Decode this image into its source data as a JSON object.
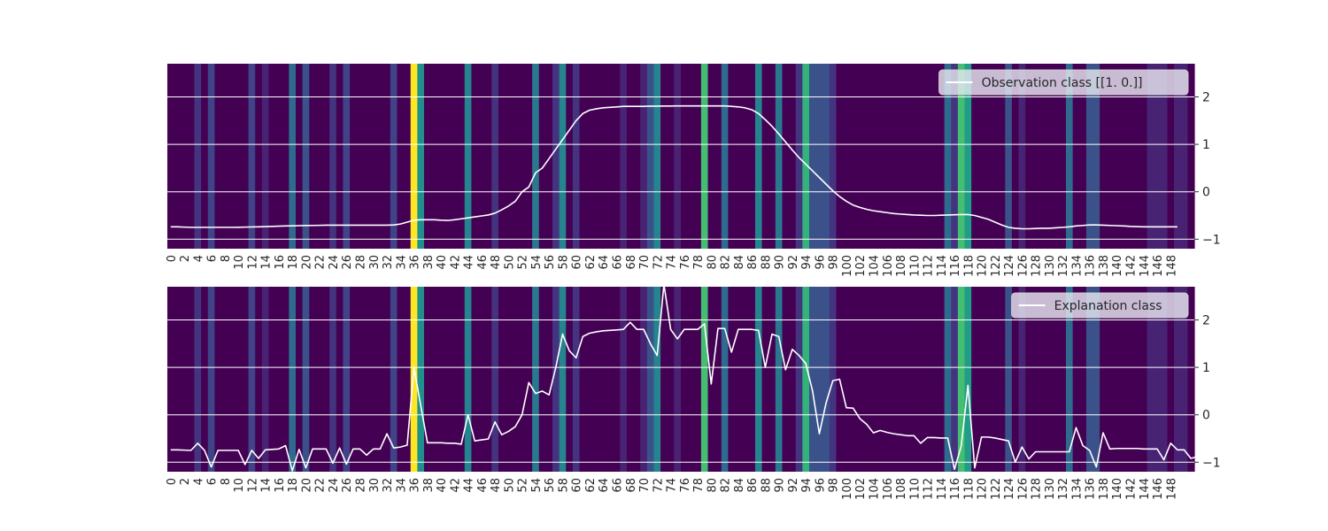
{
  "chart_data": [
    {
      "type": "line",
      "title": "",
      "xlabel": "",
      "ylabel": "",
      "ylim": [
        -1.2,
        2.7
      ],
      "xlim": [
        0,
        150
      ],
      "grid": true,
      "legend": {
        "placement": "top-right",
        "entries": [
          "Observation class [[1. 0.]]"
        ]
      },
      "x_tick_labels": [
        "0",
        "2",
        "4",
        "6",
        "8",
        "10",
        "12",
        "14",
        "16",
        "18",
        "20",
        "22",
        "24",
        "26",
        "28",
        "30",
        "32",
        "34",
        "36",
        "38",
        "40",
        "42",
        "44",
        "46",
        "48",
        "50",
        "52",
        "54",
        "56",
        "58",
        "60",
        "62",
        "64",
        "66",
        "68",
        "70",
        "72",
        "74",
        "76",
        "78",
        "80",
        "82",
        "84",
        "86",
        "88",
        "90",
        "92",
        "94",
        "96",
        "98",
        "100",
        "102",
        "104",
        "106",
        "108",
        "110",
        "112",
        "114",
        "116",
        "118",
        "120",
        "122",
        "124",
        "126",
        "128",
        "130",
        "132",
        "134",
        "136",
        "138",
        "140",
        "142",
        "144",
        "146",
        "148"
      ],
      "y_tick_labels": [
        "2",
        "1",
        "0",
        "−1"
      ],
      "y_ticks": [
        2,
        1,
        0,
        -1
      ],
      "series": [
        {
          "name": "Observation class [[1. 0.]]",
          "color": "#ffffff",
          "values": [
            -0.74,
            -0.74,
            -0.745,
            -0.75,
            -0.75,
            -0.75,
            -0.75,
            -0.75,
            -0.75,
            -0.75,
            -0.748,
            -0.745,
            -0.742,
            -0.74,
            -0.735,
            -0.73,
            -0.725,
            -0.72,
            -0.718,
            -0.715,
            -0.712,
            -0.71,
            -0.708,
            -0.705,
            -0.705,
            -0.705,
            -0.705,
            -0.705,
            -0.705,
            -0.705,
            -0.705,
            -0.705,
            -0.705,
            -0.7,
            -0.68,
            -0.64,
            -0.6,
            -0.59,
            -0.59,
            -0.59,
            -0.6,
            -0.605,
            -0.59,
            -0.57,
            -0.55,
            -0.53,
            -0.51,
            -0.49,
            -0.45,
            -0.38,
            -0.3,
            -0.2,
            0.0,
            0.1,
            0.4,
            0.5,
            0.7,
            0.9,
            1.1,
            1.3,
            1.5,
            1.65,
            1.72,
            1.75,
            1.77,
            1.78,
            1.79,
            1.8,
            1.8,
            1.8,
            1.8,
            1.805,
            1.805,
            1.808,
            1.808,
            1.81,
            1.81,
            1.81,
            1.81,
            1.81,
            1.81,
            1.81,
            1.81,
            1.8,
            1.79,
            1.77,
            1.73,
            1.65,
            1.52,
            1.38,
            1.22,
            1.05,
            0.88,
            0.72,
            0.58,
            0.44,
            0.3,
            0.16,
            0.02,
            -0.1,
            -0.2,
            -0.28,
            -0.33,
            -0.37,
            -0.4,
            -0.42,
            -0.44,
            -0.46,
            -0.47,
            -0.48,
            -0.49,
            -0.495,
            -0.5,
            -0.5,
            -0.495,
            -0.49,
            -0.485,
            -0.48,
            -0.48,
            -0.5,
            -0.54,
            -0.58,
            -0.64,
            -0.7,
            -0.75,
            -0.77,
            -0.78,
            -0.78,
            -0.775,
            -0.77,
            -0.77,
            -0.76,
            -0.75,
            -0.74,
            -0.72,
            -0.71,
            -0.7,
            -0.7,
            -0.705,
            -0.71,
            -0.715,
            -0.72,
            -0.73,
            -0.735,
            -0.74,
            -0.74,
            -0.74,
            -0.74,
            -0.74,
            -0.74
          ]
        }
      ],
      "heatmap_background": {
        "colormap": "viridis",
        "values": [
          0,
          0,
          0,
          0,
          0.15,
          0,
          0.2,
          0,
          0,
          0,
          0,
          0,
          0.2,
          0,
          0.1,
          0,
          0,
          0,
          0.35,
          0,
          0.25,
          0,
          0,
          0,
          0.15,
          0,
          0.2,
          0,
          0,
          0,
          0,
          0,
          0,
          0.2,
          0,
          0,
          1.0,
          0.5,
          0,
          0,
          0,
          0,
          0,
          0,
          0.45,
          0,
          0,
          0,
          0.15,
          0,
          0,
          0,
          0,
          0,
          0.4,
          0,
          0,
          0.15,
          0.45,
          0,
          0.15,
          0,
          0,
          0,
          0,
          0,
          0,
          0.1,
          0,
          0,
          0.1,
          0.25,
          0.45,
          0,
          0,
          0.1,
          0,
          0,
          0,
          0.7,
          0,
          0,
          0.35,
          0,
          0,
          0,
          0,
          0.45,
          0,
          0,
          0.4,
          0,
          0,
          0.15,
          0.65,
          0.25,
          0.25,
          0.25,
          0.15,
          0,
          0,
          0,
          0,
          0,
          0,
          0,
          0,
          0,
          0,
          0,
          0,
          0,
          0,
          0,
          0,
          0.35,
          0.15,
          0.7,
          0.55,
          0,
          0,
          0,
          0,
          0,
          0.25,
          0,
          0.1,
          0,
          0,
          0,
          0,
          0,
          0,
          0.35,
          0,
          0,
          0.25,
          0.25,
          0,
          0,
          0,
          0,
          0,
          0,
          0,
          0.1,
          0.1,
          0.1,
          0,
          0.1,
          0.1,
          0
        ]
      }
    },
    {
      "type": "line",
      "title": "",
      "xlabel": "",
      "ylabel": "",
      "ylim": [
        -1.2,
        2.7
      ],
      "xlim": [
        0,
        150
      ],
      "grid": true,
      "legend": {
        "placement": "top-right",
        "entries": [
          "Explanation class"
        ]
      },
      "x_tick_labels": [
        "0",
        "2",
        "4",
        "6",
        "8",
        "10",
        "12",
        "14",
        "16",
        "18",
        "20",
        "22",
        "24",
        "26",
        "28",
        "30",
        "32",
        "34",
        "36",
        "38",
        "40",
        "42",
        "44",
        "46",
        "48",
        "50",
        "52",
        "54",
        "56",
        "58",
        "60",
        "62",
        "64",
        "66",
        "68",
        "70",
        "72",
        "74",
        "76",
        "78",
        "80",
        "82",
        "84",
        "86",
        "88",
        "90",
        "92",
        "94",
        "96",
        "98",
        "100",
        "102",
        "104",
        "106",
        "108",
        "110",
        "112",
        "114",
        "116",
        "118",
        "120",
        "122",
        "124",
        "126",
        "128",
        "130",
        "132",
        "134",
        "136",
        "138",
        "140",
        "142",
        "144",
        "146",
        "148"
      ],
      "y_tick_labels": [
        "2",
        "1",
        "0",
        "−1"
      ],
      "y_ticks": [
        2,
        1,
        0,
        -1
      ],
      "series": [
        {
          "name": "Explanation class",
          "color": "#ffffff",
          "values": [
            -0.74,
            -0.74,
            -0.745,
            -0.75,
            -0.6,
            -0.75,
            -1.1,
            -0.75,
            -0.75,
            -0.75,
            -0.75,
            -1.05,
            -0.75,
            -0.92,
            -0.74,
            -0.73,
            -0.72,
            -0.65,
            -1.18,
            -0.73,
            -1.12,
            -0.72,
            -0.72,
            -0.72,
            -1.02,
            -0.7,
            -1.04,
            -0.72,
            -0.72,
            -0.85,
            -0.72,
            -0.72,
            -0.4,
            -0.7,
            -0.68,
            -0.64,
            1.0,
            0.2,
            -0.59,
            -0.59,
            -0.59,
            -0.6,
            -0.6,
            -0.62,
            0.0,
            -0.55,
            -0.53,
            -0.51,
            -0.15,
            -0.42,
            -0.35,
            -0.25,
            0.0,
            0.68,
            0.45,
            0.5,
            0.42,
            1.0,
            1.7,
            1.35,
            1.2,
            1.65,
            1.72,
            1.75,
            1.77,
            1.78,
            1.79,
            1.8,
            1.95,
            1.8,
            1.8,
            1.5,
            1.25,
            2.75,
            1.8,
            1.6,
            1.8,
            1.8,
            1.8,
            1.92,
            0.65,
            1.82,
            1.82,
            1.32,
            1.8,
            1.8,
            1.8,
            1.78,
            1.0,
            1.7,
            1.65,
            0.95,
            1.38,
            1.25,
            1.08,
            0.5,
            -0.4,
            0.25,
            0.72,
            0.75,
            0.15,
            0.14,
            -0.08,
            -0.2,
            -0.38,
            -0.33,
            -0.37,
            -0.4,
            -0.42,
            -0.44,
            -0.44,
            -0.6,
            -0.48,
            -0.48,
            -0.49,
            -0.49,
            -1.15,
            -0.66,
            0.62,
            -1.12,
            -0.47,
            -0.47,
            -0.49,
            -0.52,
            -0.55,
            -1.0,
            -0.68,
            -0.93,
            -0.78,
            -0.78,
            -0.78,
            -0.78,
            -0.78,
            -0.78,
            -0.27,
            -0.65,
            -0.75,
            -1.1,
            -0.38,
            -0.72,
            -0.71,
            -0.71,
            -0.71,
            -0.71,
            -0.72,
            -0.72,
            -0.72,
            -0.95,
            -0.6,
            -0.74,
            -0.74,
            -0.92,
            -0.88,
            -0.74
          ]
        }
      ],
      "heatmap_background": {
        "colormap": "viridis",
        "values": [
          0,
          0,
          0,
          0,
          0.15,
          0,
          0.2,
          0,
          0,
          0,
          0,
          0,
          0.2,
          0,
          0.1,
          0,
          0,
          0,
          0.35,
          0,
          0.25,
          0,
          0,
          0,
          0.15,
          0,
          0.2,
          0,
          0,
          0,
          0,
          0,
          0,
          0.2,
          0,
          0,
          1.0,
          0.5,
          0,
          0,
          0,
          0,
          0,
          0,
          0.45,
          0,
          0,
          0,
          0.15,
          0,
          0,
          0,
          0,
          0,
          0.4,
          0,
          0,
          0.15,
          0.45,
          0,
          0.15,
          0,
          0,
          0,
          0,
          0,
          0,
          0.1,
          0,
          0,
          0.1,
          0.25,
          0.45,
          0,
          0,
          0.1,
          0,
          0,
          0,
          0.7,
          0,
          0,
          0.35,
          0,
          0,
          0,
          0,
          0.45,
          0,
          0,
          0.4,
          0,
          0,
          0.15,
          0.65,
          0.25,
          0.25,
          0.25,
          0.15,
          0,
          0,
          0,
          0,
          0,
          0,
          0,
          0,
          0,
          0,
          0,
          0,
          0,
          0,
          0,
          0,
          0.35,
          0.15,
          0.7,
          0.55,
          0,
          0,
          0,
          0,
          0,
          0.25,
          0,
          0.1,
          0,
          0,
          0,
          0,
          0,
          0,
          0.35,
          0,
          0,
          0.25,
          0.25,
          0,
          0,
          0,
          0,
          0,
          0,
          0,
          0.1,
          0.1,
          0.1,
          0,
          0.1,
          0.1,
          0
        ]
      }
    }
  ]
}
